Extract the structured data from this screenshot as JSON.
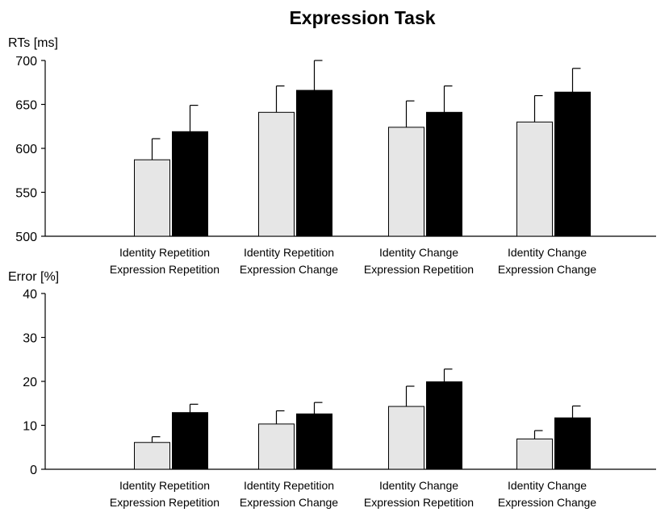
{
  "title": "Expression Task",
  "colors": {
    "series_light": "#e6e6e6",
    "series_dark": "#000000",
    "axis": "#000000"
  },
  "chart_data": [
    {
      "type": "bar",
      "ylabel": "RTs [ms]",
      "ylim": [
        500,
        700
      ],
      "yticks": [
        500,
        550,
        600,
        650,
        700
      ],
      "categories": [
        [
          "Identity Repetition",
          "Expression Repetition"
        ],
        [
          "Identity Repetition",
          "Expression Change"
        ],
        [
          "Identity Change",
          "Expression Repetition"
        ],
        [
          "Identity Change",
          "Expression Change"
        ]
      ],
      "series": [
        {
          "color": "#e6e6e6",
          "values": [
            587,
            641,
            624,
            630
          ],
          "error": [
            24,
            30,
            30,
            30
          ]
        },
        {
          "color": "#000000",
          "values": [
            619,
            666,
            641,
            664
          ],
          "error": [
            30,
            34,
            30,
            27
          ]
        }
      ],
      "grid": false,
      "legend": "none"
    },
    {
      "type": "bar",
      "ylabel": "Error [%]",
      "ylim": [
        0,
        40
      ],
      "yticks": [
        0,
        10,
        20,
        30,
        40
      ],
      "categories": [
        [
          "Identity Repetition",
          "Expression Repetition"
        ],
        [
          "Identity Repetition",
          "Expression Change"
        ],
        [
          "Identity Change",
          "Expression Repetition"
        ],
        [
          "Identity Change",
          "Expression Change"
        ]
      ],
      "series": [
        {
          "color": "#e6e6e6",
          "values": [
            6.1,
            10.3,
            14.3,
            6.9
          ],
          "error": [
            1.3,
            3.0,
            4.6,
            1.9
          ]
        },
        {
          "color": "#000000",
          "values": [
            12.9,
            12.6,
            19.9,
            11.7
          ],
          "error": [
            1.9,
            2.6,
            2.9,
            2.7
          ]
        }
      ],
      "grid": false,
      "legend": "none"
    }
  ]
}
